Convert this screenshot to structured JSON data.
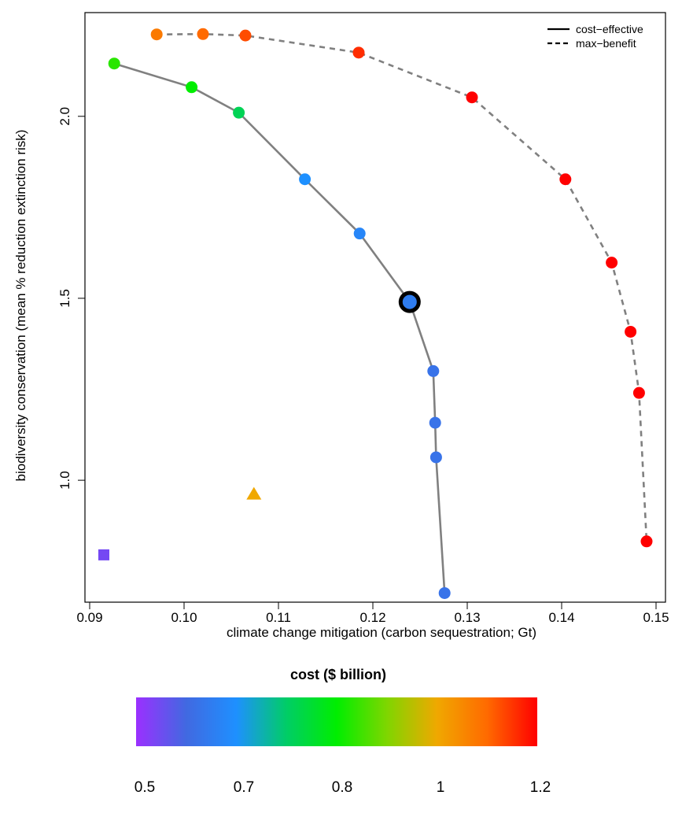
{
  "chart_data": {
    "type": "scatter",
    "title": "",
    "xlabel": "climate change mitigation (carbon sequestration; Gt)",
    "ylabel": "biodiversity conservation (mean % reduction extinction risk)",
    "xlim": [
      0.0895,
      0.151
    ],
    "ylim": [
      0.665,
      2.285
    ],
    "x_ticks": [
      "0.09",
      "0.10",
      "0.11",
      "0.12",
      "0.13",
      "0.14",
      "0.15"
    ],
    "y_ticks": [
      "1.0",
      "1.5",
      "2.0"
    ],
    "legend": {
      "position": "top-right",
      "entries": [
        {
          "label": "cost−effective",
          "line_style": "solid"
        },
        {
          "label": "max−benefit",
          "line_style": "dashed"
        }
      ]
    },
    "series": [
      {
        "name": "cost−effective",
        "line_style": "solid",
        "line_color": "#808080",
        "points": [
          {
            "x": 0.0926,
            "y": 2.145,
            "cost": 0.86
          },
          {
            "x": 0.1008,
            "y": 2.08,
            "cost": 0.84
          },
          {
            "x": 0.1058,
            "y": 2.01,
            "cost": 0.79
          },
          {
            "x": 0.1128,
            "y": 1.827,
            "cost": 0.7
          },
          {
            "x": 0.1186,
            "y": 1.678,
            "cost": 0.68
          },
          {
            "x": 0.1239,
            "y": 1.49,
            "cost": 0.66,
            "highlighted": true
          },
          {
            "x": 0.1264,
            "y": 1.3,
            "cost": 0.64
          },
          {
            "x": 0.1266,
            "y": 1.158,
            "cost": 0.64
          },
          {
            "x": 0.1267,
            "y": 1.063,
            "cost": 0.64
          },
          {
            "x": 0.1276,
            "y": 0.69,
            "cost": 0.64
          }
        ]
      },
      {
        "name": "max−benefit",
        "line_style": "dashed",
        "line_color": "#808080",
        "points": [
          {
            "x": 0.0971,
            "y": 2.225,
            "cost": 1.06
          },
          {
            "x": 0.102,
            "y": 2.226,
            "cost": 1.08
          },
          {
            "x": 0.1065,
            "y": 2.222,
            "cost": 1.1
          },
          {
            "x": 0.1185,
            "y": 2.175,
            "cost": 1.12
          },
          {
            "x": 0.1305,
            "y": 2.052,
            "cost": 1.15
          },
          {
            "x": 0.1404,
            "y": 1.827,
            "cost": 1.18
          },
          {
            "x": 0.1453,
            "y": 1.598,
            "cost": 1.19
          },
          {
            "x": 0.1473,
            "y": 1.408,
            "cost": 1.19
          },
          {
            "x": 0.1482,
            "y": 1.24,
            "cost": 1.19
          },
          {
            "x": 0.149,
            "y": 0.832,
            "cost": 1.2
          }
        ]
      },
      {
        "name": "",
        "marker": "triangle",
        "points": [
          {
            "x": 0.1074,
            "y": 0.962,
            "cost": 1.0
          }
        ]
      },
      {
        "name": "",
        "marker": "square",
        "points": [
          {
            "x": 0.0915,
            "y": 0.795,
            "cost": 0.55
          }
        ]
      }
    ],
    "colorbar": {
      "title": "cost ($ billion)",
      "labels": [
        "0.5",
        "0.7",
        "0.8",
        "1",
        "1.2"
      ],
      "stops": [
        "#9b30ff",
        "#4169e1",
        "#1e90ff",
        "#00cd66",
        "#00ee00",
        "#7fd600",
        "#f0a800",
        "#ff6a00",
        "#ff0000"
      ]
    },
    "colors": {
      "line": "#808080",
      "highlight_ring": "#000000",
      "plot_frame": "#000000"
    }
  }
}
